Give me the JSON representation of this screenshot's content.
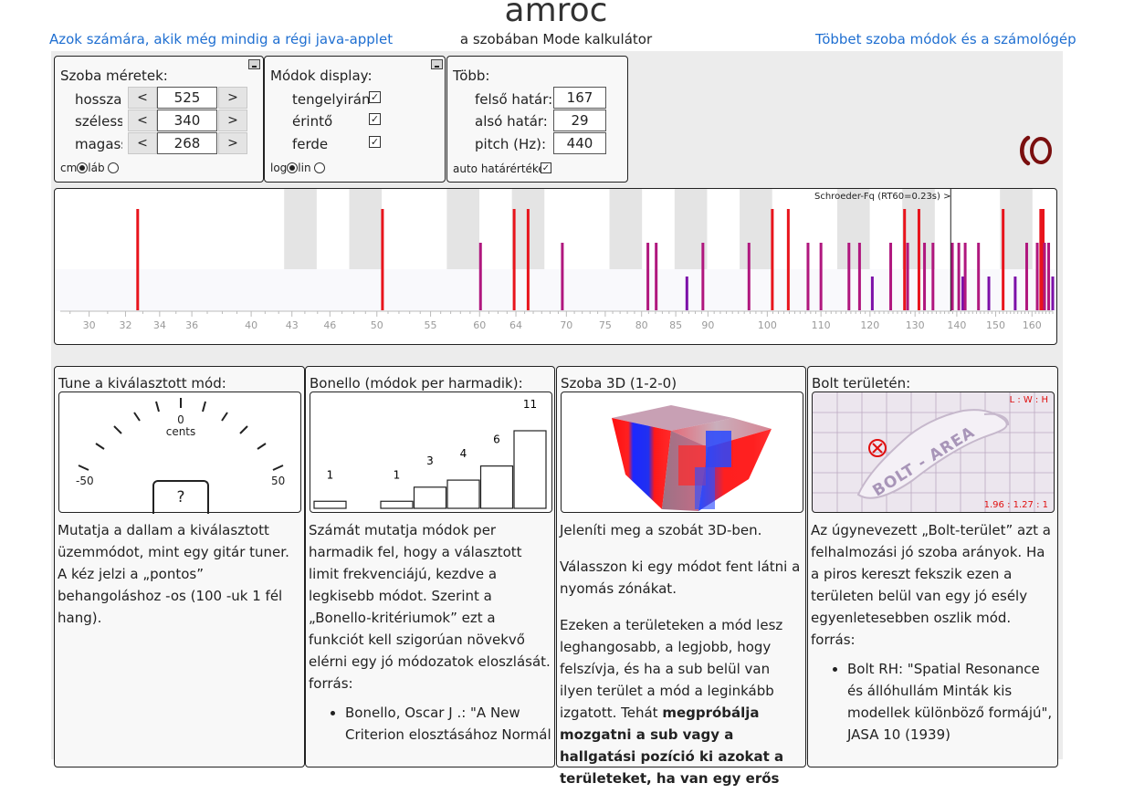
{
  "header": {
    "title": "amroc",
    "left_link": "Azok számára, akik még mindig a régi java-applet",
    "subtitle": "a szobában Mode kalkulátor",
    "right_link": "Többet szoba módok és a számológép"
  },
  "dimensions": {
    "title": "Szoba méretek:",
    "rows": [
      {
        "label": "hossza:",
        "value": "525",
        "dec": "<",
        "inc": ">"
      },
      {
        "label": "szélessé",
        "value": "340",
        "dec": "<",
        "inc": ">"
      },
      {
        "label": "magassá",
        "value": "268",
        "dec": "<",
        "inc": ">"
      }
    ],
    "unit_cm": "cm",
    "unit_ft": "láb"
  },
  "display": {
    "title": "Módok display:",
    "rows": [
      {
        "label": "tengelyirány",
        "checked": true
      },
      {
        "label": "érintő",
        "checked": true
      },
      {
        "label": "ferde",
        "checked": true
      }
    ],
    "scale_log": "log",
    "scale_lin": "lin"
  },
  "more": {
    "title": "Több:",
    "rows": [
      {
        "label": "felső határ:",
        "value": "167"
      },
      {
        "label": "alsó határ:",
        "value": "29"
      },
      {
        "label": "pitch (Hz):",
        "value": "440"
      }
    ],
    "auto_label": "auto határértékek"
  },
  "spectrum": {
    "schroeder_label": "Schroeder-Fq (RT60=0.23s) >",
    "schroeder_freq": 138.5,
    "freq_min": 28.5,
    "freq_max": 166,
    "ticks": [
      30,
      32,
      34,
      36,
      40,
      43,
      46,
      50,
      55,
      60,
      64,
      70,
      75,
      80,
      85,
      90,
      100,
      110,
      120,
      130,
      140,
      150,
      160
    ],
    "colors": {
      "axial": "#e8141c",
      "tangential": "#b0177e",
      "oblique": "#7c10a8"
    },
    "modes": [
      {
        "f": 32.7,
        "type": "axial"
      },
      {
        "f": 50.5,
        "type": "axial"
      },
      {
        "f": 63.8,
        "type": "axial"
      },
      {
        "f": 65.4,
        "type": "axial"
      },
      {
        "f": 60.1,
        "type": "tangential"
      },
      {
        "f": 69.5,
        "type": "tangential"
      },
      {
        "f": 80.9,
        "type": "tangential"
      },
      {
        "f": 82.1,
        "type": "tangential"
      },
      {
        "f": 86.7,
        "type": "oblique"
      },
      {
        "f": 89.2,
        "type": "tangential"
      },
      {
        "f": 96.8,
        "type": "tangential"
      },
      {
        "f": 100.9,
        "type": "axial"
      },
      {
        "f": 103.8,
        "type": "axial"
      },
      {
        "f": 107.5,
        "type": "tangential"
      },
      {
        "f": 110.0,
        "type": "tangential"
      },
      {
        "f": 115.6,
        "type": "tangential"
      },
      {
        "f": 117.8,
        "type": "tangential"
      },
      {
        "f": 120.5,
        "type": "oblique"
      },
      {
        "f": 124.5,
        "type": "tangential"
      },
      {
        "f": 127.6,
        "type": "axial"
      },
      {
        "f": 128.3,
        "type": "tangential"
      },
      {
        "f": 130.9,
        "type": "axial"
      },
      {
        "f": 132.2,
        "type": "tangential"
      },
      {
        "f": 134.2,
        "type": "tangential"
      },
      {
        "f": 138.9,
        "type": "tangential"
      },
      {
        "f": 140.5,
        "type": "tangential"
      },
      {
        "f": 141.5,
        "type": "oblique"
      },
      {
        "f": 142.1,
        "type": "tangential"
      },
      {
        "f": 145.5,
        "type": "tangential"
      },
      {
        "f": 148.2,
        "type": "oblique"
      },
      {
        "f": 152.0,
        "type": "axial"
      },
      {
        "f": 155.3,
        "type": "oblique"
      },
      {
        "f": 158.5,
        "type": "tangential"
      },
      {
        "f": 161.5,
        "type": "tangential"
      },
      {
        "f": 162.5,
        "type": "axial"
      },
      {
        "f": 163.2,
        "type": "axial"
      },
      {
        "f": 163.6,
        "type": "tangential"
      },
      {
        "f": 164.8,
        "type": "tangential"
      },
      {
        "f": 166.0,
        "type": "oblique"
      }
    ]
  },
  "tuner": {
    "title": "Tune a kiválasztott mód:",
    "zero": "0",
    "cents": "cents",
    "min": "-50",
    "max": "50",
    "reading": "?",
    "description": "Mutatja a dallam a kiválasztott üzemmódot, mint egy gitár tuner. A kéz jelzi a „pontos” behangoláshoz -os (100 -uk 1 fél hang)."
  },
  "bonello": {
    "title": "Bonello (módok per harmadik):",
    "counts": [
      1,
      0,
      1,
      3,
      4,
      6,
      11
    ],
    "description": "Számát mutatja módok per harmadik fel, hogy a választott limit frekvenciájú, kezdve a legkisebb módot. Szerint a „Bonello-kritériumok” ezt a funkciót kell szigorúan növekvő elérni egy jó módozatok eloszlását.",
    "source_label": "forrás:",
    "ref": "Bonello, Oscar J .: \"A New Criterion elosztásához Normál"
  },
  "room3d": {
    "title": "Szoba 3D (1-2-0)",
    "p1": "Jeleníti meg a szobát 3D-ben.",
    "p2": "Válasszon ki egy módot fent látni a nyomás zónákat.",
    "p3_start": "Ezeken a területeken a mód lesz leghangosabb, a legjobb, hogy felszívja, és ha a sub belül van ilyen terület a mód a leginkább izgatott. Tehát ",
    "p3_bold": "megpróbálja mozgatni a sub vagy a hallgatási pozíció ki azokat a területeket, ha van egy erős"
  },
  "bolt": {
    "title": "Bolt területén:",
    "ratio_label": "L : W : H",
    "ratio_value": "1.96 : 1.27 : 1",
    "area_text": "BOLT - AREA",
    "description": "Az úgynevezett „Bolt-terület” azt a felhalmozási jó szoba arányok. Ha a piros kereszt fekszik ezen a területen belül van egy jó esély egyenletesebben oszlik mód.",
    "source_label": "forrás:",
    "ref": "Bolt RH: \"Spatial Resonance és állóhullám Minták kis modellek különböző formájú\", JASA 10 (1939)"
  }
}
